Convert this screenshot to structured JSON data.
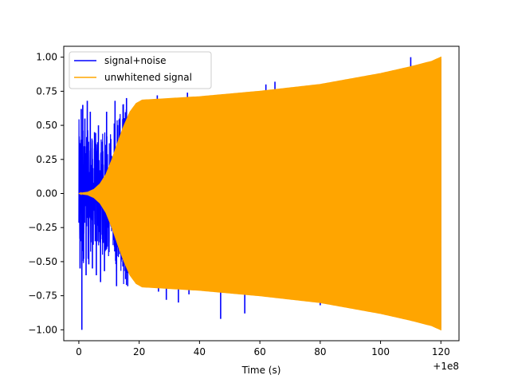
{
  "chart_data": {
    "type": "line",
    "title": "",
    "xlabel": "Time (s)",
    "ylabel": "",
    "x_offset_label": "+1e8",
    "xlim": [
      -5,
      126
    ],
    "ylim": [
      -1.08,
      1.08
    ],
    "x_ticks": [
      0,
      20,
      40,
      60,
      80,
      100,
      120
    ],
    "x_tick_labels": [
      "0",
      "20",
      "40",
      "60",
      "80",
      "100",
      "120"
    ],
    "y_ticks": [
      -1.0,
      -0.75,
      -0.5,
      -0.25,
      0.0,
      0.25,
      0.5,
      0.75,
      1.0
    ],
    "y_tick_labels": [
      "−1.00",
      "−0.75",
      "−0.50",
      "−0.25",
      "0.00",
      "0.25",
      "0.50",
      "0.75",
      "1.00"
    ],
    "grid": false,
    "legend_position": "top-left",
    "series": [
      {
        "name": "signal+noise",
        "color": "#0000ff",
        "noise_spikes": [
          {
            "x": 0.2,
            "y": 0.37
          },
          {
            "x": 0.4,
            "y": -0.55
          },
          {
            "x": 0.8,
            "y": 0.62
          },
          {
            "x": 1.0,
            "y": -1.0
          },
          {
            "x": 1.3,
            "y": 0.65
          },
          {
            "x": 1.6,
            "y": -0.48
          },
          {
            "x": 2.0,
            "y": 0.55
          },
          {
            "x": 2.4,
            "y": -0.6
          },
          {
            "x": 2.8,
            "y": 0.68
          },
          {
            "x": 3.3,
            "y": -0.52
          },
          {
            "x": 3.8,
            "y": 0.6
          },
          {
            "x": 4.5,
            "y": -0.55
          },
          {
            "x": 5.2,
            "y": 0.45
          },
          {
            "x": 5.8,
            "y": -0.6
          },
          {
            "x": 6.5,
            "y": 0.5
          },
          {
            "x": 7.2,
            "y": -0.65
          },
          {
            "x": 7.8,
            "y": 0.38
          },
          {
            "x": 8.5,
            "y": -0.57
          },
          {
            "x": 9.2,
            "y": 0.6
          },
          {
            "x": 10.0,
            "y": -0.43
          },
          {
            "x": 10.6,
            "y": 0.4
          },
          {
            "x": 12.0,
            "y": 0.68
          },
          {
            "x": 12.5,
            "y": -0.68
          },
          {
            "x": 13.5,
            "y": 0.55
          },
          {
            "x": 15.8,
            "y": 0.7
          },
          {
            "x": 16.2,
            "y": -0.68
          },
          {
            "x": 26.0,
            "y": 0.72
          },
          {
            "x": 26.4,
            "y": -0.72
          },
          {
            "x": 29.0,
            "y": -0.78
          },
          {
            "x": 33.0,
            "y": -0.8
          },
          {
            "x": 36.0,
            "y": 0.74
          },
          {
            "x": 36.5,
            "y": -0.74
          },
          {
            "x": 47.0,
            "y": -0.92
          },
          {
            "x": 47.5,
            "y": 0.72
          },
          {
            "x": 55.0,
            "y": -0.88
          },
          {
            "x": 62.0,
            "y": 0.8
          },
          {
            "x": 65.0,
            "y": 0.82
          },
          {
            "x": 65.3,
            "y": -0.76
          },
          {
            "x": 80.0,
            "y": -0.82
          },
          {
            "x": 110.0,
            "y": 1.0
          },
          {
            "x": 110.3,
            "y": -0.9
          },
          {
            "x": 116.0,
            "y": -0.93
          }
        ]
      },
      {
        "name": "unwhitened signal",
        "color": "#ffa500",
        "envelope": [
          {
            "x": 0,
            "y": 0.0
          },
          {
            "x": 3,
            "y": 0.01
          },
          {
            "x": 5,
            "y": 0.03
          },
          {
            "x": 7,
            "y": 0.07
          },
          {
            "x": 9,
            "y": 0.14
          },
          {
            "x": 11,
            "y": 0.25
          },
          {
            "x": 13,
            "y": 0.38
          },
          {
            "x": 15,
            "y": 0.5
          },
          {
            "x": 17,
            "y": 0.6
          },
          {
            "x": 19,
            "y": 0.66
          },
          {
            "x": 21,
            "y": 0.685
          },
          {
            "x": 25,
            "y": 0.69
          },
          {
            "x": 40,
            "y": 0.71
          },
          {
            "x": 60,
            "y": 0.75
          },
          {
            "x": 80,
            "y": 0.8
          },
          {
            "x": 100,
            "y": 0.88
          },
          {
            "x": 110,
            "y": 0.93
          },
          {
            "x": 117,
            "y": 0.97
          },
          {
            "x": 120,
            "y": 1.0
          }
        ]
      }
    ]
  }
}
